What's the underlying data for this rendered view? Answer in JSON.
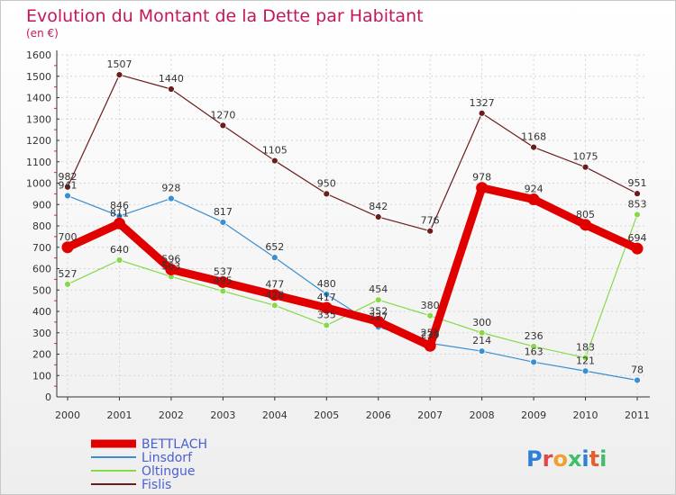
{
  "chart_data": {
    "type": "line",
    "title": "Evolution du Montant de la Dette par Habitant",
    "subtitle": "(en €)",
    "x": [
      "2000",
      "2001",
      "2002",
      "2003",
      "2004",
      "2005",
      "2006",
      "2007",
      "2008",
      "2009",
      "2010",
      "2011"
    ],
    "ylim": [
      0,
      1600
    ],
    "yticks": [
      0,
      100,
      200,
      300,
      400,
      500,
      600,
      700,
      800,
      900,
      1000,
      1100,
      1200,
      1300,
      1400,
      1500,
      1600
    ],
    "grid": true,
    "legend": "bottom-left",
    "series": [
      {
        "name": "BETTLACH",
        "color": "#e00000",
        "values": [
          700,
          811,
          596,
          537,
          477,
          417,
          352,
          239,
          978,
          924,
          805,
          694
        ]
      },
      {
        "name": "Linsdorf",
        "color": "#3a8fd0",
        "values": [
          941,
          846,
          928,
          817,
          652,
          480,
          327,
          251,
          214,
          163,
          121,
          78
        ]
      },
      {
        "name": "Oltingue",
        "color": "#88d94a",
        "values": [
          527,
          640,
          563,
          495,
          428,
          335,
          454,
          380,
          300,
          236,
          183,
          853
        ]
      },
      {
        "name": "Fislis",
        "color": "#6b1d1d",
        "values": [
          982,
          1507,
          1440,
          1270,
          1105,
          950,
          842,
          776,
          1327,
          1168,
          1075,
          951
        ]
      }
    ]
  },
  "watermark": "Proxiti"
}
